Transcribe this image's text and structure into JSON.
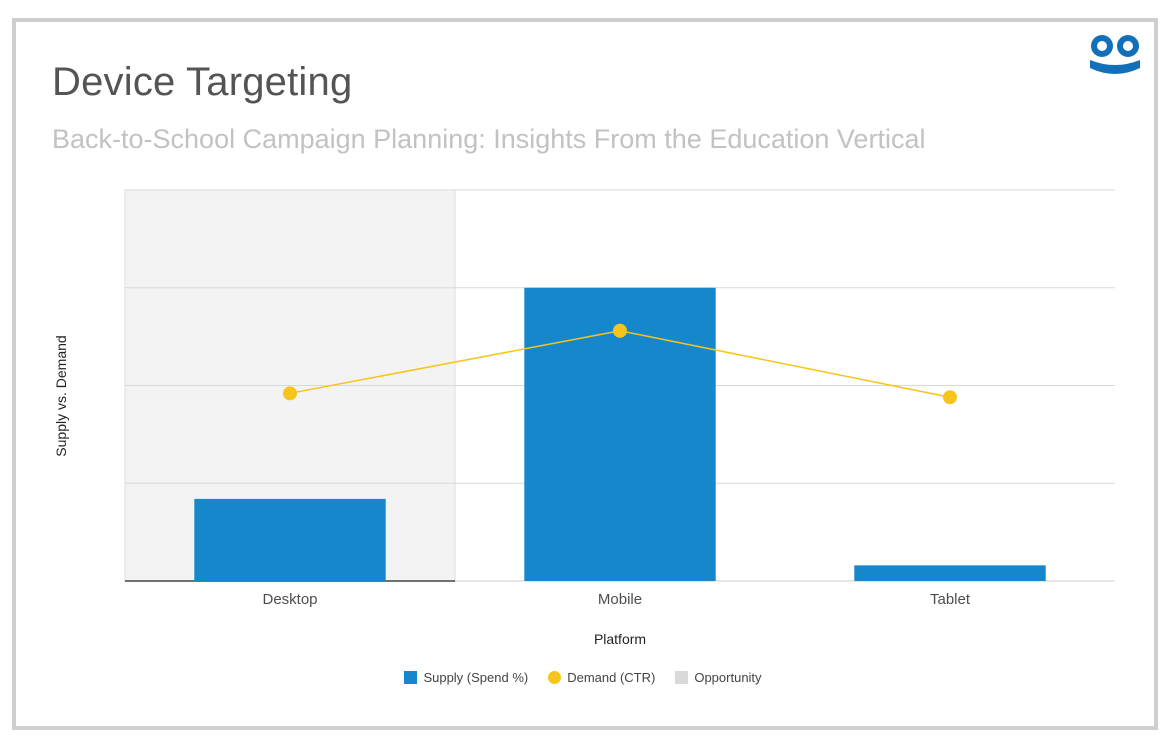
{
  "header": {
    "title": "Device Targeting",
    "subtitle": "Back-to-School Campaign Planning: Insights From the Education Vertical",
    "logo_icon": "googly-eyes-logo-icon"
  },
  "colors": {
    "supply": "#1787cc",
    "demand": "#f7c51a",
    "opportunity": "#f3f3f3",
    "logo": "#1170b8"
  },
  "chart_data": {
    "type": "bar",
    "categories": [
      "Desktop",
      "Mobile",
      "Tablet"
    ],
    "series": [
      {
        "name": "Supply (Spend %)",
        "type": "bar",
        "values": [
          21,
          75,
          4
        ]
      },
      {
        "name": "Demand (CTR)",
        "type": "line",
        "values": [
          48,
          64,
          47
        ]
      }
    ],
    "highlight": {
      "name": "Opportunity",
      "categories": [
        "Desktop"
      ]
    },
    "xlabel": "Platform",
    "ylabel": "Supply vs. Demand",
    "ylim": [
      0,
      100
    ],
    "gridlines": 4,
    "y_tick_labels_visible": false,
    "grid": true,
    "legend_position": "bottom"
  }
}
